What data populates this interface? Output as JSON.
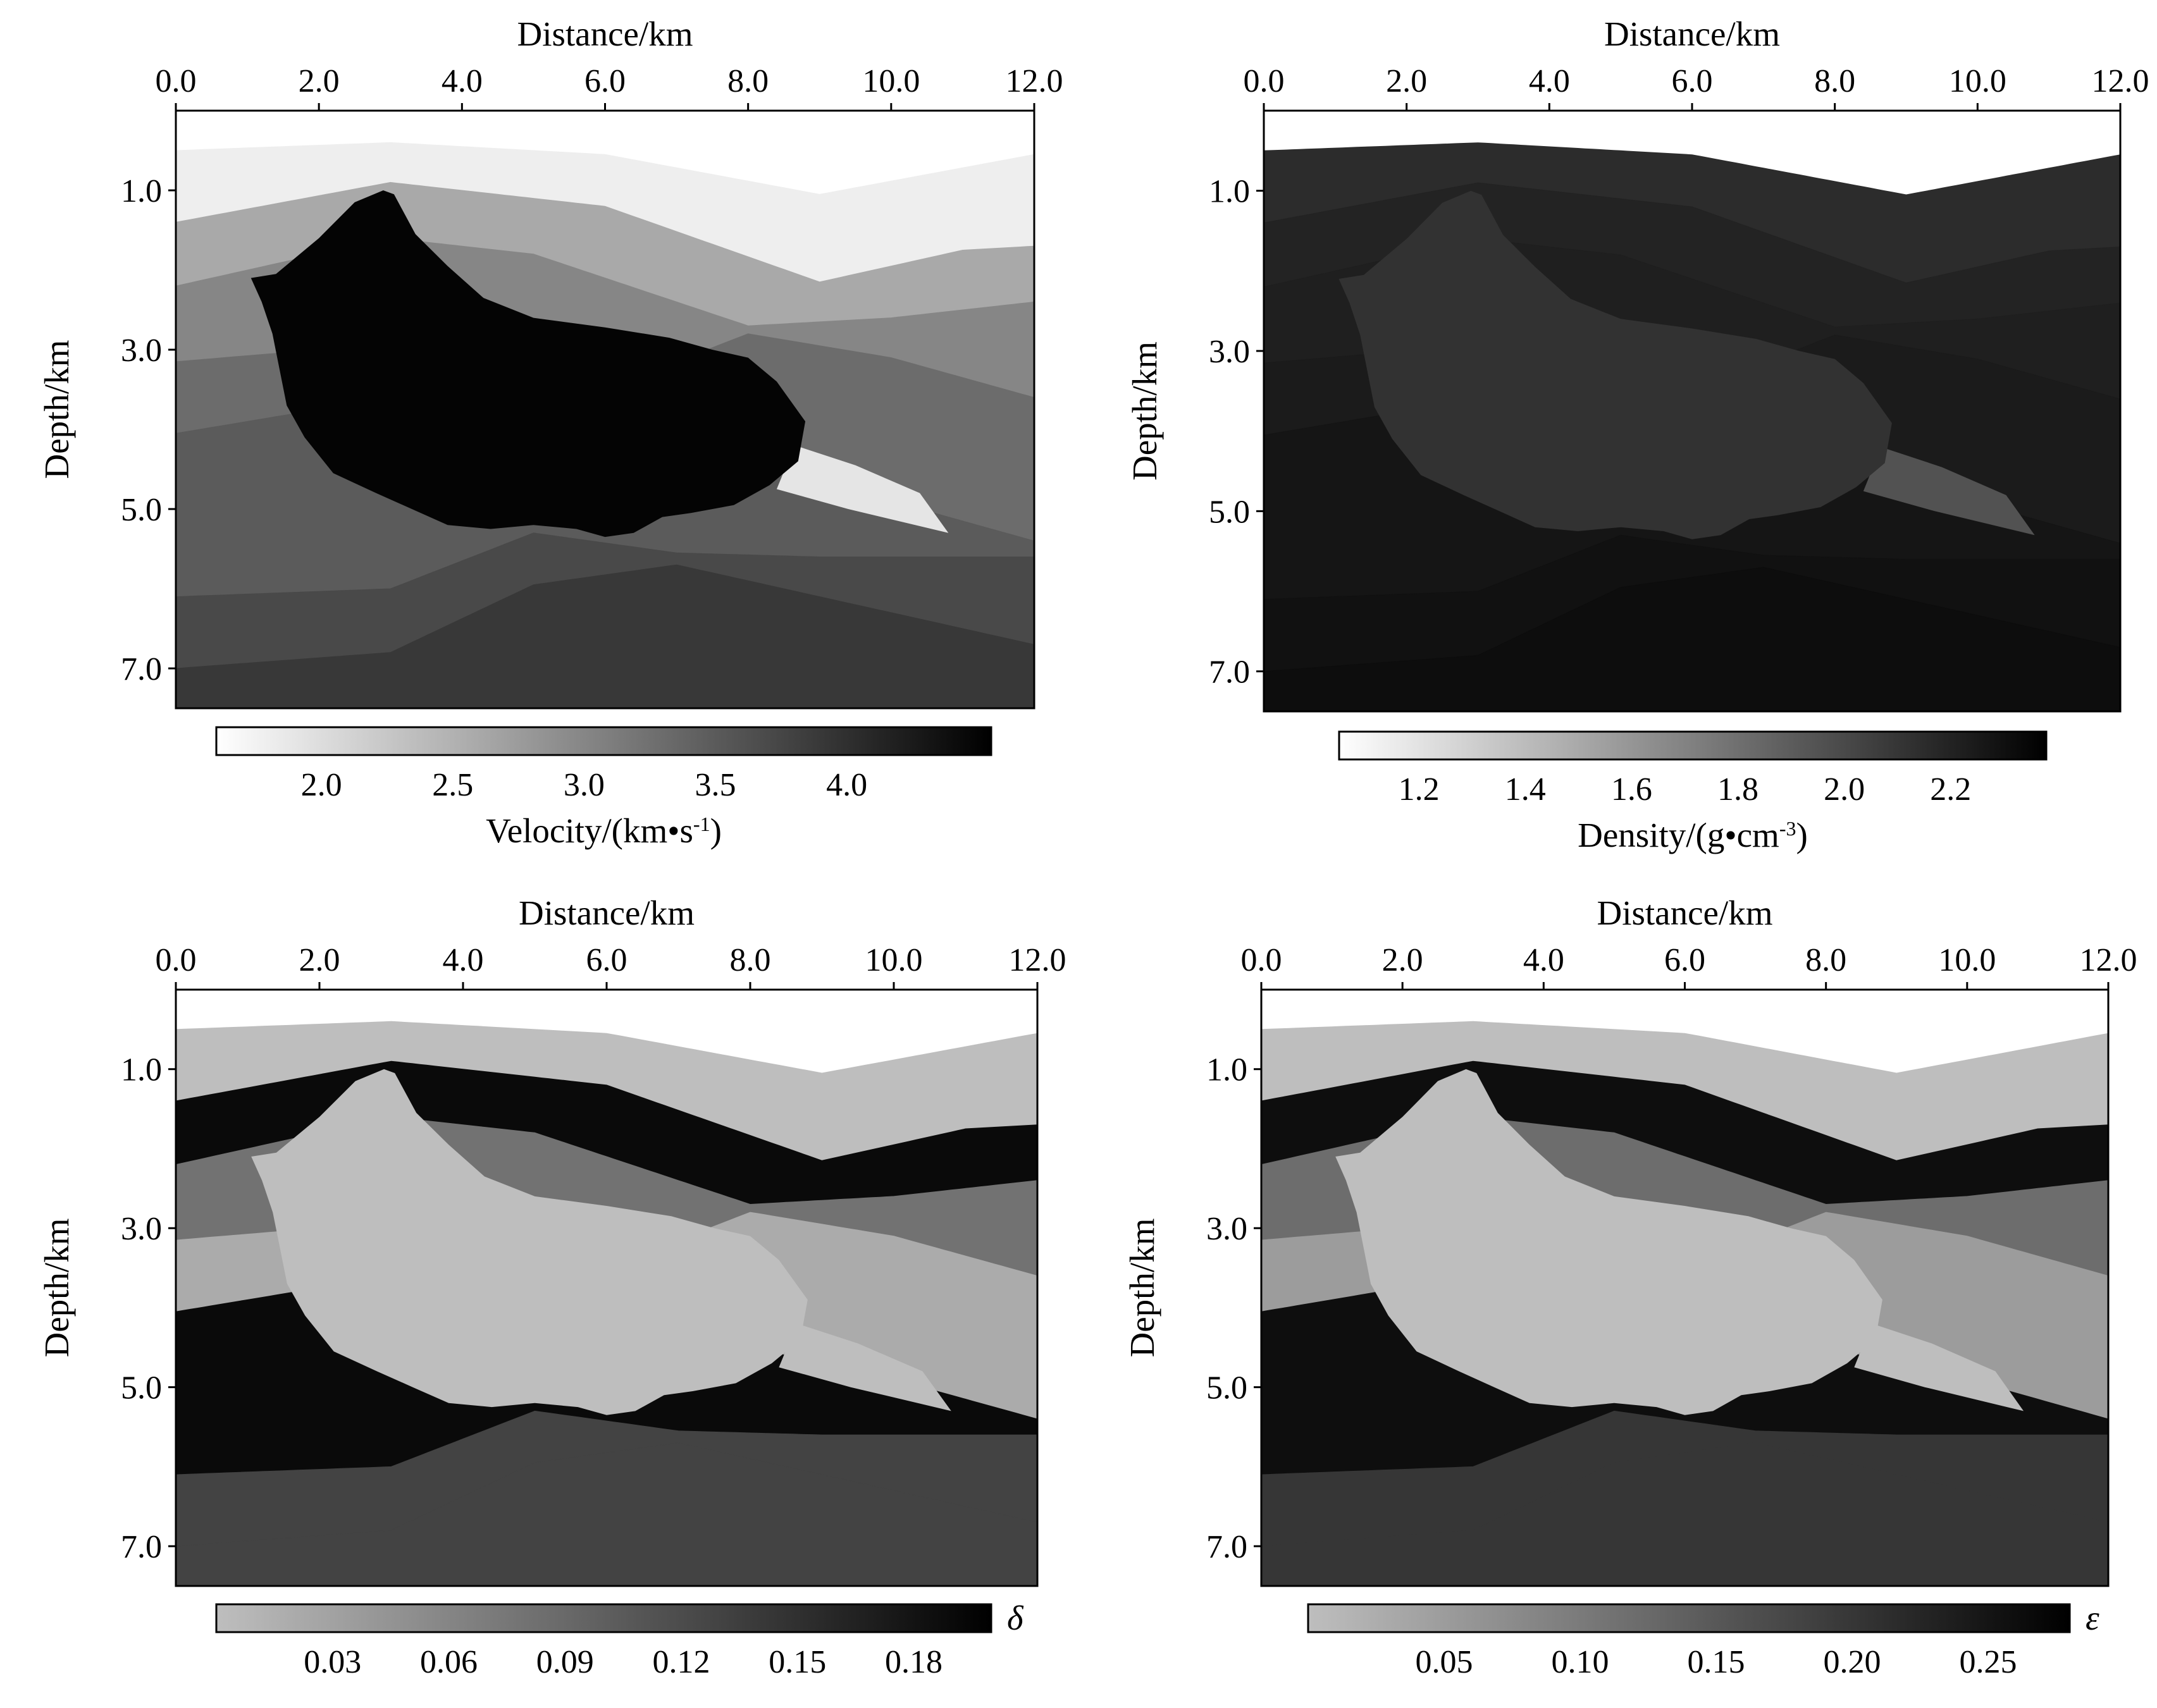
{
  "figure": {
    "panels": [
      {
        "id": "velocity",
        "colormap": "light-to-dark",
        "colorbar": {
          "min": 1.6,
          "max": 4.55,
          "ticks": [
            "2.0",
            "2.5",
            "3.0",
            "3.5",
            "4.0"
          ],
          "tick_values": [
            2.0,
            2.5,
            3.0,
            3.5,
            4.0
          ],
          "label_main": "Velocity/(km",
          "label_dot": "•",
          "label_unit": "s",
          "label_sup": "-1",
          "label_close": ")",
          "symbol": ""
        },
        "layer_values": [
          1.8,
          2.6,
          3.0,
          3.3,
          3.5,
          3.7,
          3.9
        ],
        "salt_value": 4.5,
        "thin_layer_value": 1.9
      },
      {
        "id": "density",
        "colormap": "light-to-dark",
        "colorbar": {
          "min": 1.05,
          "max": 2.38,
          "ticks": [
            "1.2",
            "1.4",
            "1.6",
            "1.8",
            "2.0",
            "2.2"
          ],
          "tick_values": [
            1.2,
            1.4,
            1.6,
            1.8,
            2.0,
            2.2
          ],
          "label_main": "Density/(g",
          "label_dot": "•",
          "label_unit": "cm",
          "label_sup": "-3",
          "label_close": ")",
          "symbol": ""
        },
        "layer_values": [
          2.15,
          2.2,
          2.22,
          2.24,
          2.27,
          2.29,
          2.31
        ],
        "salt_value": 2.12,
        "thin_layer_value": 1.95
      },
      {
        "id": "delta",
        "colormap": "light-to-black",
        "colorbar": {
          "min": 0.0,
          "max": 0.2,
          "ticks": [
            "0.03",
            "0.06",
            "0.09",
            "0.12",
            "0.15",
            "0.18"
          ],
          "tick_values": [
            0.03,
            0.06,
            0.09,
            0.12,
            0.15,
            0.18
          ],
          "label_main": "",
          "label_dot": "",
          "label_unit": "",
          "label_sup": "",
          "label_close": "",
          "symbol": "δ"
        },
        "layer_values": [
          0.0,
          0.19,
          0.08,
          0.02,
          0.19,
          0.13,
          0.13
        ],
        "salt_value": 0.0,
        "thin_layer_value": 0.0
      },
      {
        "id": "epsilon",
        "colormap": "light-to-black",
        "colorbar": {
          "min": 0.0,
          "max": 0.28,
          "ticks": [
            "0.05",
            "0.10",
            "0.15",
            "0.20",
            "0.25"
          ],
          "tick_values": [
            0.05,
            0.1,
            0.15,
            0.2,
            0.25
          ],
          "label_main": "",
          "label_dot": "",
          "label_unit": "",
          "label_sup": "",
          "label_close": "",
          "symbol": "ε"
        },
        "layer_values": [
          0.0,
          0.26,
          0.12,
          0.05,
          0.26,
          0.2,
          0.2
        ],
        "salt_value": 0.0,
        "thin_layer_value": 0.0
      }
    ]
  },
  "chart_data": {
    "type": "heatmap",
    "xlabel": "Distance/km",
    "ylabel": "Depth/km",
    "xlim": [
      0,
      12
    ],
    "ylim": [
      0,
      7.5
    ],
    "x_ticks": [
      "0.0",
      "2.0",
      "4.0",
      "6.0",
      "8.0",
      "10.0",
      "12.0"
    ],
    "x_tick_values": [
      0,
      2,
      4,
      6,
      8,
      10,
      12
    ],
    "y_ticks": [
      "1.0",
      "3.0",
      "5.0",
      "7.0"
    ],
    "y_tick_values": [
      1,
      3,
      5,
      7
    ],
    "model": {
      "top_surface": [
        [
          0,
          0.5
        ],
        [
          3,
          0.4
        ],
        [
          6,
          0.55
        ],
        [
          9,
          1.05
        ],
        [
          12,
          0.55
        ]
      ],
      "interfaces": [
        [
          [
            0,
            1.4
          ],
          [
            3,
            0.9
          ],
          [
            6,
            1.2
          ],
          [
            9,
            2.15
          ],
          [
            11,
            1.75
          ],
          [
            12,
            1.7
          ]
        ],
        [
          [
            0,
            2.2
          ],
          [
            3,
            1.6
          ],
          [
            5,
            1.8
          ],
          [
            8,
            2.7
          ],
          [
            10,
            2.6
          ],
          [
            12,
            2.4
          ]
        ],
        [
          [
            0,
            3.15
          ],
          [
            2,
            3.0
          ],
          [
            4,
            3.1
          ],
          [
            6,
            3.5
          ],
          [
            8,
            2.8
          ],
          [
            10,
            3.1
          ],
          [
            12,
            3.6
          ]
        ],
        [
          [
            0,
            4.05
          ],
          [
            2,
            3.75
          ],
          [
            4,
            3.6
          ],
          [
            6,
            4.0
          ],
          [
            8,
            4.5
          ],
          [
            10,
            4.9
          ],
          [
            12,
            5.4
          ]
        ],
        [
          [
            0,
            6.1
          ],
          [
            3,
            6.0
          ],
          [
            5,
            5.3
          ],
          [
            7,
            5.55
          ],
          [
            9,
            5.6
          ],
          [
            12,
            5.6
          ]
        ],
        [
          [
            0,
            7.0
          ],
          [
            3,
            6.8
          ],
          [
            5,
            5.95
          ],
          [
            7,
            5.7
          ],
          [
            9,
            6.1
          ],
          [
            12,
            6.7
          ]
        ]
      ],
      "thin_layer": [
        [
          8.65,
          4.2
        ],
        [
          9.5,
          4.45
        ],
        [
          10.4,
          4.8
        ],
        [
          10.8,
          5.3
        ],
        [
          9.4,
          5.0
        ],
        [
          8.4,
          4.75
        ]
      ],
      "salt_body": [
        [
          1.05,
          2.1
        ],
        [
          1.4,
          2.05
        ],
        [
          2.0,
          1.6
        ],
        [
          2.5,
          1.15
        ],
        [
          2.9,
          1.0
        ],
        [
          3.05,
          1.05
        ],
        [
          3.35,
          1.55
        ],
        [
          3.8,
          1.95
        ],
        [
          4.3,
          2.35
        ],
        [
          5.0,
          2.6
        ],
        [
          6.0,
          2.72
        ],
        [
          6.9,
          2.85
        ],
        [
          7.5,
          3.0
        ],
        [
          8.0,
          3.1
        ],
        [
          8.4,
          3.4
        ],
        [
          8.8,
          3.9
        ],
        [
          8.7,
          4.4
        ],
        [
          8.3,
          4.7
        ],
        [
          7.8,
          4.95
        ],
        [
          7.2,
          5.05
        ],
        [
          6.8,
          5.1
        ],
        [
          6.4,
          5.3
        ],
        [
          6.0,
          5.35
        ],
        [
          5.6,
          5.25
        ],
        [
          5.0,
          5.2
        ],
        [
          4.4,
          5.25
        ],
        [
          3.8,
          5.2
        ],
        [
          3.3,
          5.0
        ],
        [
          2.8,
          4.8
        ],
        [
          2.2,
          4.55
        ],
        [
          1.8,
          4.1
        ],
        [
          1.55,
          3.7
        ],
        [
          1.45,
          3.25
        ],
        [
          1.35,
          2.8
        ],
        [
          1.2,
          2.4
        ]
      ]
    }
  }
}
